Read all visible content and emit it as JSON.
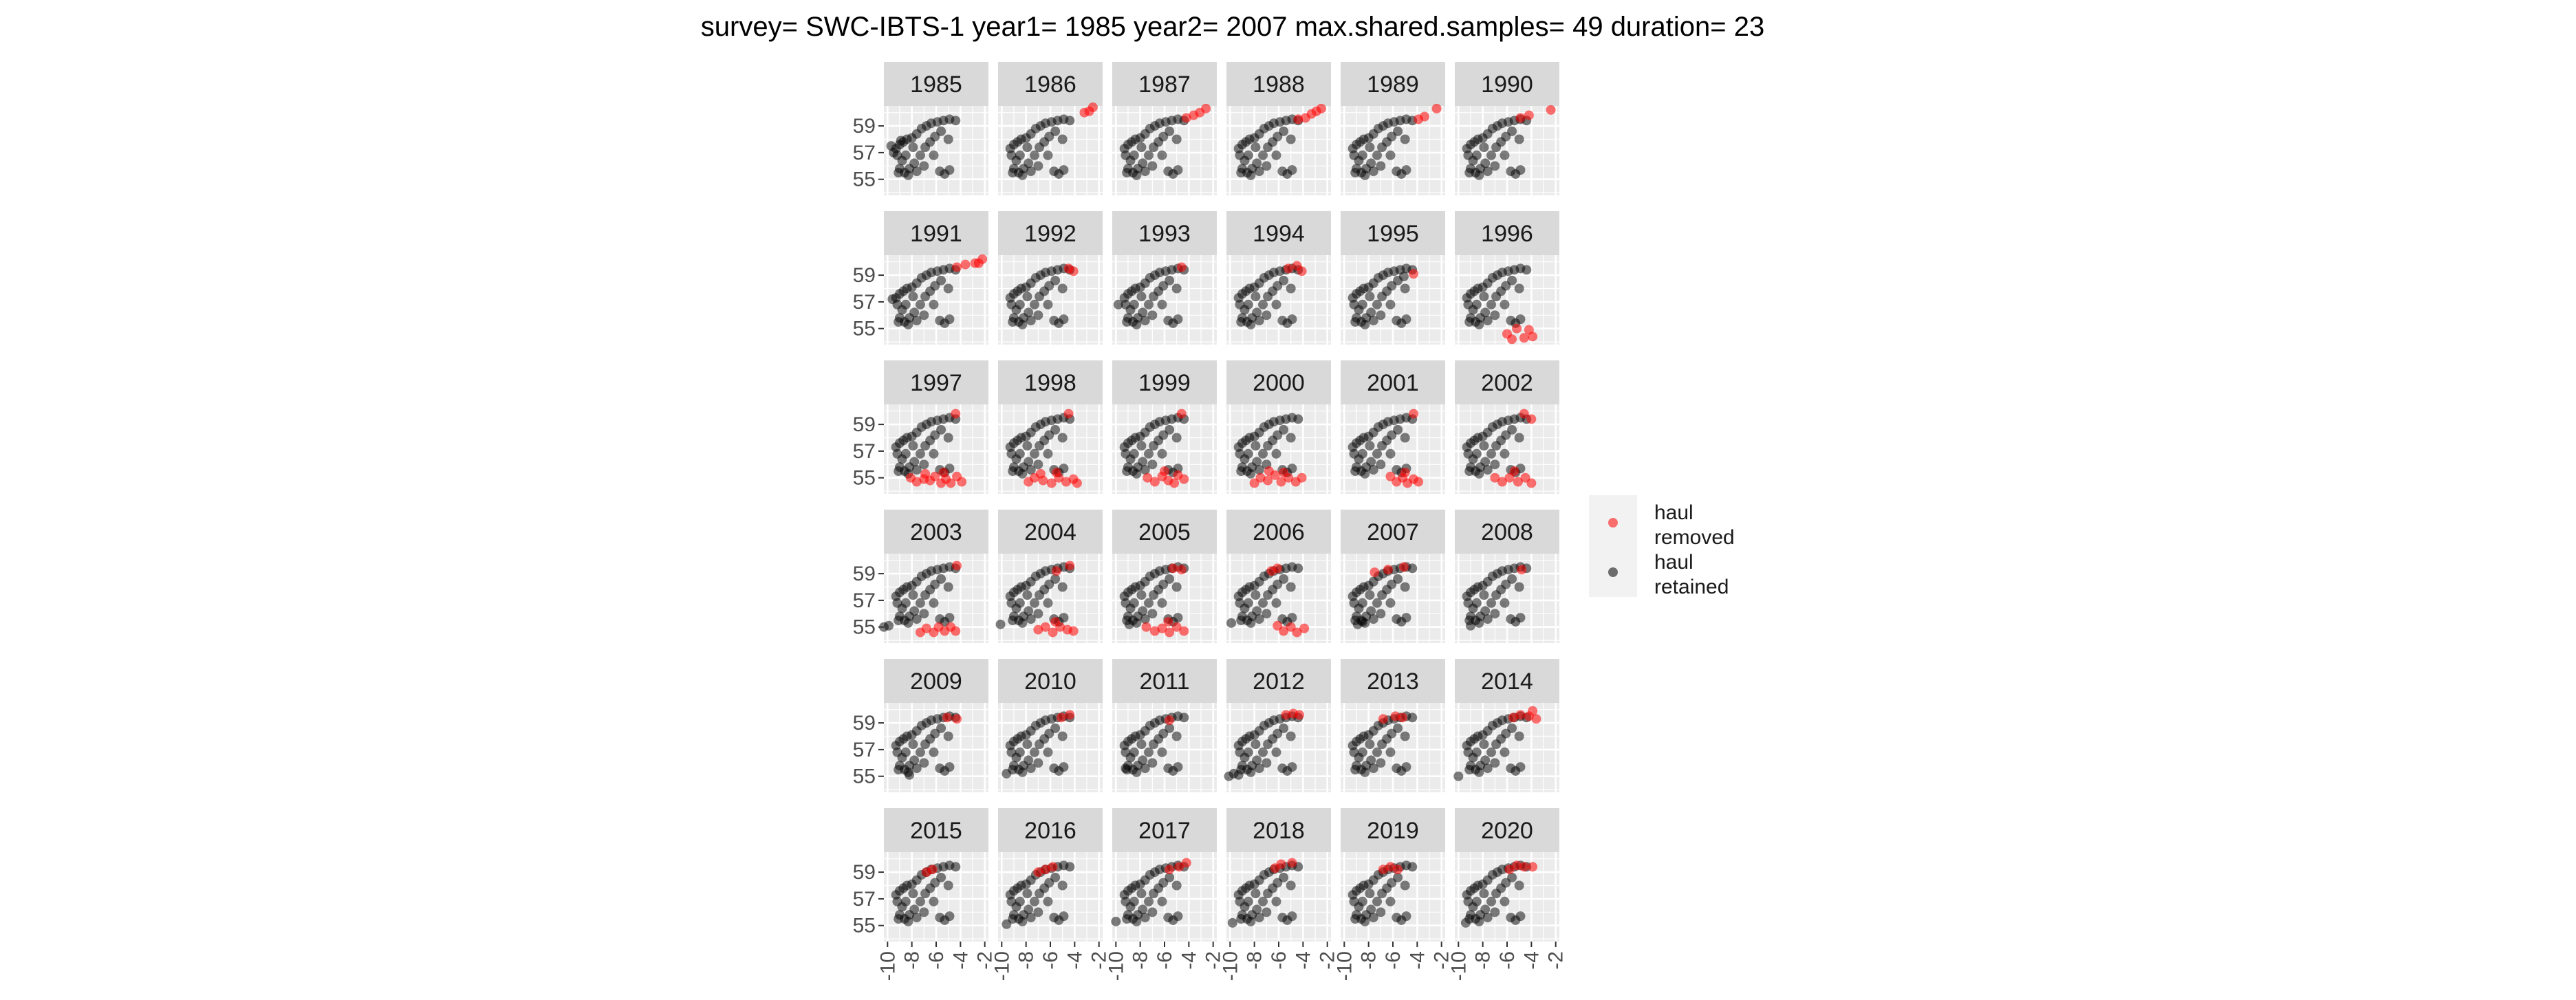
{
  "chart_data": {
    "type": "scatter",
    "title": "survey= SWC-IBTS-1 year1= 1985 year2= 2007 max.shared.samples= 49 duration= 23",
    "xlabel": "",
    "ylabel": "",
    "xlim": [
      -10.3,
      -1.7
    ],
    "ylim": [
      53.8,
      60.5
    ],
    "x_ticks": [
      -10,
      -8,
      -6,
      -4,
      -2
    ],
    "x_tick_labels": [
      "-10",
      "-8",
      "-6",
      "-4",
      "-2"
    ],
    "y_ticks": [
      55,
      57,
      59
    ],
    "y_tick_labels": [
      "55",
      "57",
      "59"
    ],
    "grid": true,
    "facets": [
      "1985",
      "1986",
      "1987",
      "1988",
      "1989",
      "1990",
      "1991",
      "1992",
      "1993",
      "1994",
      "1995",
      "1996",
      "1997",
      "1998",
      "1999",
      "2000",
      "2001",
      "2002",
      "2003",
      "2004",
      "2005",
      "2006",
      "2007",
      "2008",
      "2009",
      "2010",
      "2011",
      "2012",
      "2013",
      "2014",
      "2015",
      "2016",
      "2017",
      "2018",
      "2019",
      "2020"
    ],
    "facet_layout": {
      "ncol": 6,
      "nrow": 6
    },
    "legend": {
      "placement": "right",
      "entries": [
        {
          "label_line1": "haul",
          "label_line2": "removed",
          "color": "#ff0000"
        },
        {
          "label_line1": "haul",
          "label_line2": "retained",
          "color": "#000000"
        }
      ]
    },
    "base_retained_points": [
      [
        -9.3,
        57.3
      ],
      [
        -9.0,
        57.6
      ],
      [
        -8.7,
        57.8
      ],
      [
        -8.4,
        58.0
      ],
      [
        -8.0,
        58.1
      ],
      [
        -7.6,
        58.4
      ],
      [
        -7.2,
        58.8
      ],
      [
        -6.8,
        59.0
      ],
      [
        -6.4,
        59.2
      ],
      [
        -5.9,
        59.3
      ],
      [
        -5.4,
        59.4
      ],
      [
        -4.9,
        59.5
      ],
      [
        -4.4,
        59.4
      ],
      [
        -9.2,
        56.8
      ],
      [
        -8.8,
        56.4
      ],
      [
        -8.5,
        56.8
      ],
      [
        -9.0,
        55.8
      ],
      [
        -8.6,
        55.5
      ],
      [
        -8.2,
        55.8
      ],
      [
        -7.8,
        56.2
      ],
      [
        -7.3,
        56.8
      ],
      [
        -6.9,
        57.4
      ],
      [
        -6.5,
        57.8
      ],
      [
        -6.1,
        58.2
      ],
      [
        -5.6,
        58.6
      ],
      [
        -9.1,
        55.5
      ],
      [
        -8.3,
        55.3
      ],
      [
        -7.6,
        55.6
      ],
      [
        -7.0,
        56.0
      ],
      [
        -5.7,
        55.6
      ],
      [
        -5.3,
        55.4
      ],
      [
        -4.9,
        55.7
      ],
      [
        -5.0,
        58.0
      ],
      [
        -6.2,
        56.8
      ],
      [
        -7.9,
        57.4
      ]
    ],
    "panels": [
      {
        "year": "1985",
        "removed": [],
        "extra_retained": [
          [
            -9.7,
            57.5
          ],
          [
            -9.5,
            57.0
          ],
          [
            -8.9,
            57.9
          ]
        ]
      },
      {
        "year": "1986",
        "removed": [
          [
            -3.2,
            60.0
          ],
          [
            -2.5,
            60.4
          ],
          [
            -2.8,
            60.1
          ]
        ],
        "extra_retained": []
      },
      {
        "year": "1987",
        "removed": [
          [
            -4.2,
            59.6
          ],
          [
            -3.6,
            59.8
          ],
          [
            -2.6,
            60.3
          ],
          [
            -3.1,
            60.0
          ]
        ],
        "extra_retained": []
      },
      {
        "year": "1988",
        "removed": [
          [
            -4.4,
            59.5
          ],
          [
            -3.8,
            59.6
          ],
          [
            -3.3,
            59.9
          ],
          [
            -2.5,
            60.3
          ],
          [
            -2.9,
            60.1
          ]
        ],
        "extra_retained": []
      },
      {
        "year": "1989",
        "removed": [
          [
            -3.9,
            59.5
          ],
          [
            -3.4,
            59.7
          ],
          [
            -2.4,
            60.3
          ]
        ],
        "extra_retained": []
      },
      {
        "year": "1990",
        "removed": [
          [
            -4.9,
            59.6
          ],
          [
            -4.2,
            59.8
          ],
          [
            -2.4,
            60.2
          ]
        ],
        "extra_retained": []
      },
      {
        "year": "1991",
        "removed": [
          [
            -4.3,
            59.6
          ],
          [
            -3.6,
            59.8
          ],
          [
            -2.8,
            59.9
          ],
          [
            -2.2,
            60.2
          ],
          [
            -2.5,
            59.9
          ]
        ],
        "extra_retained": [
          [
            -9.6,
            57.2
          ]
        ]
      },
      {
        "year": "1992",
        "removed": [
          [
            -4.5,
            59.5
          ],
          [
            -4.1,
            59.3
          ]
        ],
        "extra_retained": []
      },
      {
        "year": "1993",
        "removed": [
          [
            -4.6,
            59.6
          ]
        ],
        "extra_retained": [
          [
            -9.8,
            56.8
          ]
        ]
      },
      {
        "year": "1994",
        "removed": [
          [
            -5.2,
            59.5
          ],
          [
            -4.5,
            59.7
          ],
          [
            -4.1,
            59.3
          ]
        ],
        "extra_retained": []
      },
      {
        "year": "1995",
        "removed": [
          [
            -4.3,
            59.1
          ]
        ],
        "extra_retained": [
          [
            -5.1,
            58.9
          ]
        ]
      },
      {
        "year": "1996",
        "removed": [
          [
            -6.0,
            54.6
          ],
          [
            -5.2,
            55.0
          ],
          [
            -4.6,
            54.3
          ],
          [
            -3.9,
            54.4
          ],
          [
            -4.2,
            54.9
          ],
          [
            -5.6,
            54.2
          ]
        ],
        "extra_retained": []
      },
      {
        "year": "1997",
        "removed": [
          [
            -8.1,
            55.0
          ],
          [
            -7.6,
            54.7
          ],
          [
            -7.0,
            54.9
          ],
          [
            -6.5,
            54.8
          ],
          [
            -6.1,
            55.1
          ],
          [
            -5.6,
            54.6
          ],
          [
            -5.2,
            54.9
          ],
          [
            -4.8,
            54.6
          ],
          [
            -4.3,
            55.1
          ],
          [
            -3.9,
            54.7
          ],
          [
            -5.4,
            55.4
          ],
          [
            -6.9,
            55.3
          ],
          [
            -4.4,
            59.8
          ]
        ],
        "extra_retained": []
      },
      {
        "year": "1998",
        "removed": [
          [
            -7.8,
            54.7
          ],
          [
            -7.3,
            55.0
          ],
          [
            -6.6,
            54.8
          ],
          [
            -5.9,
            54.6
          ],
          [
            -5.3,
            55.0
          ],
          [
            -4.7,
            54.7
          ],
          [
            -4.1,
            54.9
          ],
          [
            -3.8,
            54.6
          ],
          [
            -5.5,
            55.4
          ],
          [
            -6.8,
            55.3
          ],
          [
            -4.5,
            59.8
          ]
        ],
        "extra_retained": []
      },
      {
        "year": "1999",
        "removed": [
          [
            -7.4,
            55.0
          ],
          [
            -6.8,
            54.7
          ],
          [
            -6.2,
            55.1
          ],
          [
            -5.7,
            54.8
          ],
          [
            -5.2,
            54.6
          ],
          [
            -4.9,
            55.2
          ],
          [
            -4.4,
            54.9
          ],
          [
            -6.0,
            55.5
          ],
          [
            -4.6,
            59.8
          ]
        ],
        "extra_retained": []
      },
      {
        "year": "2000",
        "removed": [
          [
            -8.0,
            54.6
          ],
          [
            -7.5,
            55.0
          ],
          [
            -6.9,
            54.8
          ],
          [
            -6.3,
            55.2
          ],
          [
            -5.8,
            54.7
          ],
          [
            -5.2,
            55.0
          ],
          [
            -4.6,
            54.7
          ],
          [
            -4.1,
            55.0
          ],
          [
            -5.6,
            55.4
          ],
          [
            -6.8,
            55.5
          ]
        ],
        "extra_retained": []
      },
      {
        "year": "2001",
        "removed": [
          [
            -6.2,
            55.1
          ],
          [
            -5.7,
            54.7
          ],
          [
            -5.2,
            55.0
          ],
          [
            -4.8,
            54.6
          ],
          [
            -4.3,
            54.9
          ],
          [
            -3.9,
            54.7
          ],
          [
            -5.0,
            55.4
          ],
          [
            -4.3,
            59.8
          ]
        ],
        "extra_retained": []
      },
      {
        "year": "2002",
        "removed": [
          [
            -7.0,
            55.0
          ],
          [
            -6.4,
            54.7
          ],
          [
            -5.8,
            55.0
          ],
          [
            -5.1,
            54.7
          ],
          [
            -4.5,
            55.0
          ],
          [
            -4.0,
            54.6
          ],
          [
            -5.4,
            55.5
          ],
          [
            -4.6,
            59.8
          ],
          [
            -4.0,
            59.4
          ]
        ],
        "extra_retained": []
      },
      {
        "year": "2003",
        "removed": [
          [
            -7.3,
            54.6
          ],
          [
            -6.8,
            54.9
          ],
          [
            -6.2,
            54.6
          ],
          [
            -5.8,
            55.0
          ],
          [
            -5.3,
            54.7
          ],
          [
            -4.8,
            55.0
          ],
          [
            -4.4,
            54.7
          ],
          [
            -4.3,
            59.6
          ]
        ],
        "extra_retained": [
          [
            -10.3,
            55.0
          ],
          [
            -9.9,
            55.1
          ]
        ]
      },
      {
        "year": "2004",
        "removed": [
          [
            -7.0,
            54.8
          ],
          [
            -6.4,
            55.0
          ],
          [
            -5.8,
            54.6
          ],
          [
            -5.2,
            55.0
          ],
          [
            -4.6,
            54.8
          ],
          [
            -4.1,
            54.7
          ],
          [
            -5.6,
            55.4
          ],
          [
            -5.5,
            59.2
          ],
          [
            -4.4,
            59.6
          ]
        ],
        "extra_retained": [
          [
            -10.1,
            55.2
          ]
        ]
      },
      {
        "year": "2005",
        "removed": [
          [
            -7.5,
            55.0
          ],
          [
            -6.8,
            54.7
          ],
          [
            -6.2,
            54.9
          ],
          [
            -5.6,
            54.6
          ],
          [
            -5.0,
            55.0
          ],
          [
            -4.4,
            54.7
          ],
          [
            -5.7,
            55.4
          ],
          [
            -5.3,
            59.4
          ],
          [
            -4.6,
            59.3
          ]
        ],
        "extra_retained": [
          [
            -8.9,
            55.2
          ]
        ]
      },
      {
        "year": "2006",
        "removed": [
          [
            -6.1,
            55.1
          ],
          [
            -5.6,
            54.7
          ],
          [
            -5.0,
            55.0
          ],
          [
            -4.5,
            54.6
          ],
          [
            -3.9,
            54.9
          ],
          [
            -6.6,
            59.2
          ],
          [
            -6.1,
            59.4
          ]
        ],
        "extra_retained": [
          [
            -9.9,
            55.3
          ]
        ]
      },
      {
        "year": "2007",
        "removed": [
          [
            -7.5,
            59.1
          ],
          [
            -6.4,
            59.3
          ],
          [
            -5.1,
            59.5
          ]
        ],
        "extra_retained": [
          [
            -8.9,
            55.2
          ],
          [
            -8.5,
            55.4
          ]
        ]
      },
      {
        "year": "2008",
        "removed": [
          [
            -4.8,
            59.3
          ]
        ],
        "extra_retained": [
          [
            -9.0,
            55.1
          ]
        ]
      },
      {
        "year": "2009",
        "removed": [
          [
            -5.1,
            59.4
          ],
          [
            -4.3,
            59.3
          ]
        ],
        "extra_retained": [
          [
            -8.2,
            55.1
          ]
        ]
      },
      {
        "year": "2010",
        "removed": [
          [
            -5.1,
            59.4
          ],
          [
            -4.4,
            59.6
          ]
        ],
        "extra_retained": [
          [
            -9.6,
            55.2
          ]
        ]
      },
      {
        "year": "2011",
        "removed": [
          [
            -5.6,
            59.2
          ]
        ],
        "extra_retained": [
          [
            -9.2,
            55.6
          ]
        ]
      },
      {
        "year": "2012",
        "removed": [
          [
            -5.4,
            59.6
          ],
          [
            -4.8,
            59.7
          ],
          [
            -4.3,
            59.6
          ]
        ],
        "extra_retained": [
          [
            -10.1,
            55.0
          ],
          [
            -9.7,
            55.2
          ],
          [
            -9.3,
            55.1
          ]
        ]
      },
      {
        "year": "2013",
        "removed": [
          [
            -6.8,
            59.3
          ],
          [
            -5.8,
            59.5
          ],
          [
            -5.2,
            59.4
          ]
        ],
        "extra_retained": []
      },
      {
        "year": "2014",
        "removed": [
          [
            -5.5,
            59.4
          ],
          [
            -4.9,
            59.6
          ],
          [
            -4.2,
            59.5
          ],
          [
            -3.9,
            59.9
          ],
          [
            -3.6,
            59.3
          ]
        ],
        "extra_retained": [
          [
            -10.0,
            55.0
          ]
        ]
      },
      {
        "year": "2015",
        "removed": [
          [
            -6.8,
            59.0
          ],
          [
            -6.3,
            59.2
          ]
        ],
        "extra_retained": []
      },
      {
        "year": "2016",
        "removed": [
          [
            -7.0,
            59.0
          ],
          [
            -6.4,
            59.2
          ],
          [
            -5.8,
            59.4
          ]
        ],
        "extra_retained": [
          [
            -9.6,
            55.1
          ]
        ]
      },
      {
        "year": "2017",
        "removed": [
          [
            -5.6,
            59.2
          ],
          [
            -4.8,
            59.4
          ],
          [
            -4.2,
            59.7
          ]
        ],
        "extra_retained": [
          [
            -10.0,
            55.3
          ]
        ]
      },
      {
        "year": "2018",
        "removed": [
          [
            -6.3,
            59.3
          ],
          [
            -5.8,
            59.6
          ],
          [
            -4.9,
            59.7
          ]
        ],
        "extra_retained": [
          [
            -9.8,
            55.2
          ]
        ]
      },
      {
        "year": "2019",
        "removed": [
          [
            -6.8,
            59.2
          ],
          [
            -6.2,
            59.4
          ],
          [
            -5.6,
            59.2
          ]
        ],
        "extra_retained": []
      },
      {
        "year": "2020",
        "removed": [
          [
            -5.8,
            59.2
          ],
          [
            -5.2,
            59.5
          ],
          [
            -4.6,
            59.4
          ],
          [
            -3.9,
            59.4
          ]
        ],
        "extra_retained": [
          [
            -9.4,
            55.2
          ]
        ]
      }
    ]
  }
}
